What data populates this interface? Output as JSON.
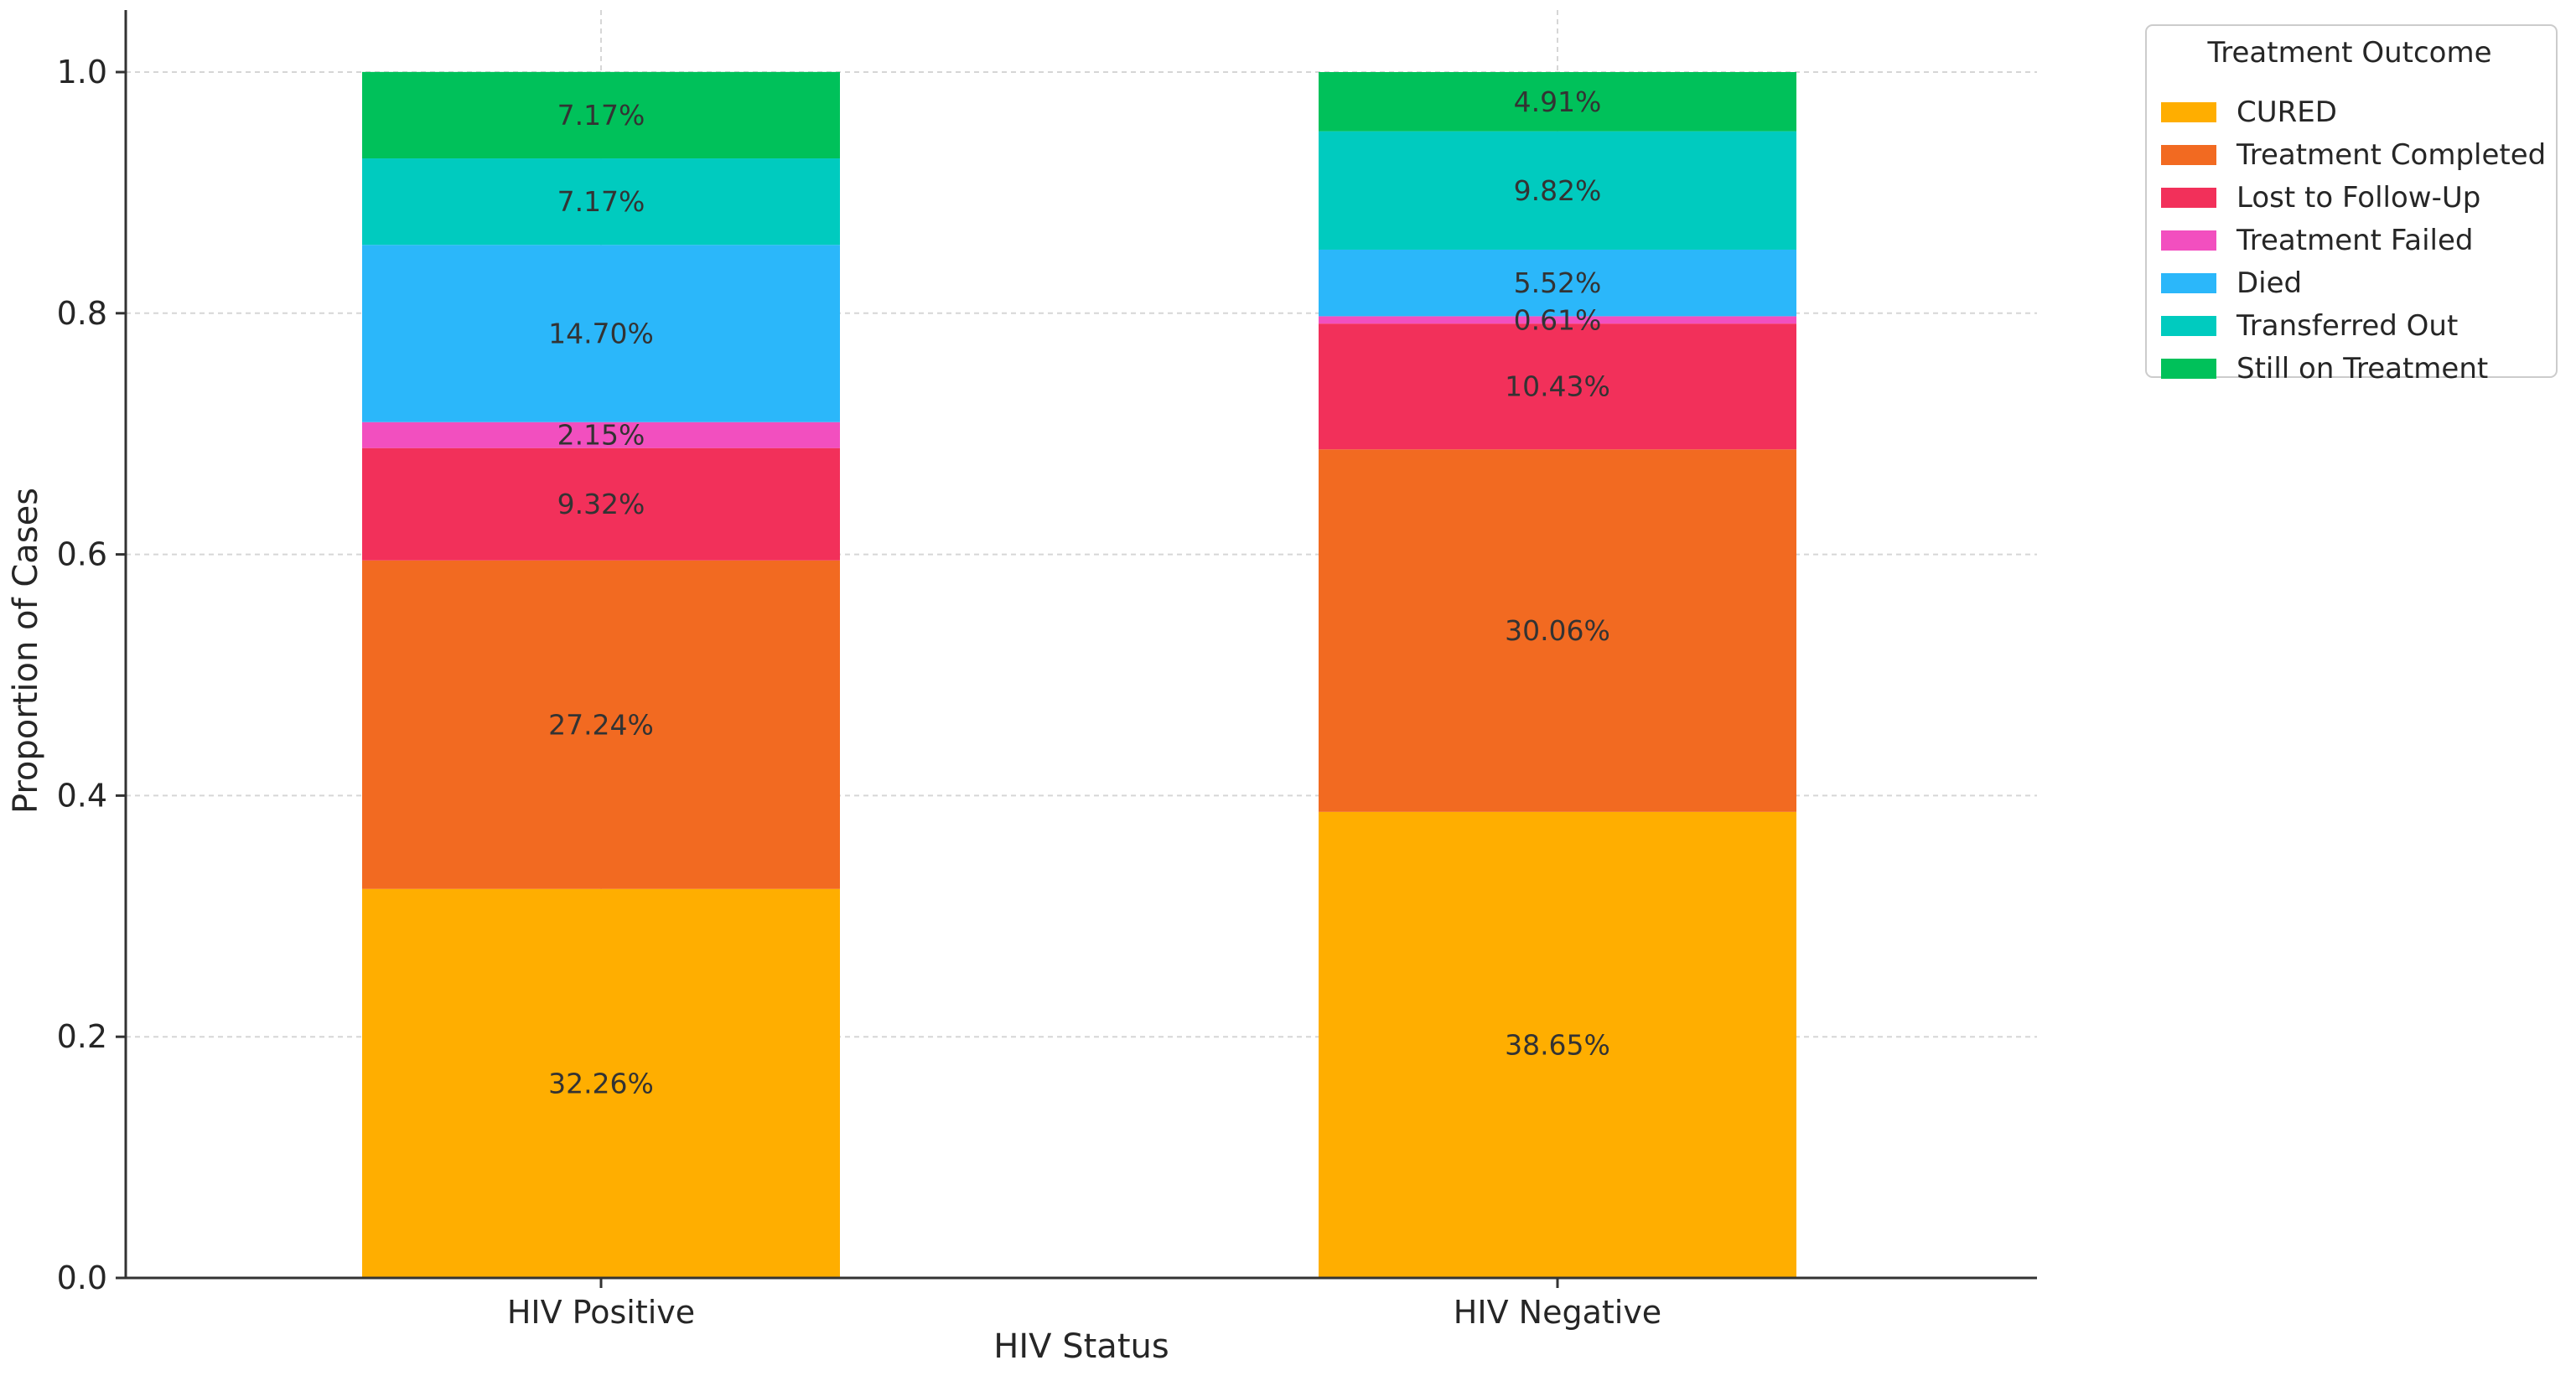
{
  "chart_data": {
    "type": "bar",
    "stacked": true,
    "title": "",
    "xlabel": "HIV Status",
    "ylabel": "Proportion of Cases",
    "ylim": [
      0,
      1.05
    ],
    "yticks": [
      0.0,
      0.2,
      0.4,
      0.6,
      0.8,
      1.0
    ],
    "ytick_labels": [
      "0.0",
      "0.2",
      "0.4",
      "0.6",
      "0.8",
      "1.0"
    ],
    "grid": true,
    "categories": [
      "HIV Positive",
      "HIV Negative"
    ],
    "legend": {
      "title": "Treatment Outcome",
      "location": "outside top-right"
    },
    "series": [
      {
        "name": "CURED",
        "color": "#FFAE00",
        "values": [
          0.3226,
          0.3865
        ],
        "labels": [
          "32.26%",
          "38.65%"
        ]
      },
      {
        "name": "Treatment Completed",
        "color": "#F26A21",
        "values": [
          0.2724,
          0.3006
        ],
        "labels": [
          "27.24%",
          "30.06%"
        ]
      },
      {
        "name": "Lost to Follow-Up",
        "color": "#F2305A",
        "values": [
          0.0932,
          0.1043
        ],
        "labels": [
          "9.32%",
          "10.43%"
        ]
      },
      {
        "name": "Treatment Failed",
        "color": "#F24FBF",
        "values": [
          0.0215,
          0.0061
        ],
        "labels": [
          "2.15%",
          "0.61%"
        ]
      },
      {
        "name": "Died",
        "color": "#2BB7FA",
        "values": [
          0.147,
          0.0552
        ],
        "labels": [
          "14.70%",
          "5.52%"
        ]
      },
      {
        "name": "Transferred Out",
        "color": "#00CBBF",
        "values": [
          0.0717,
          0.0982
        ],
        "labels": [
          "7.17%",
          "9.82%"
        ]
      },
      {
        "name": "Still on Treatment",
        "color": "#00C15A",
        "values": [
          0.0717,
          0.0491
        ],
        "labels": [
          "7.17%",
          "4.91%"
        ]
      }
    ]
  }
}
